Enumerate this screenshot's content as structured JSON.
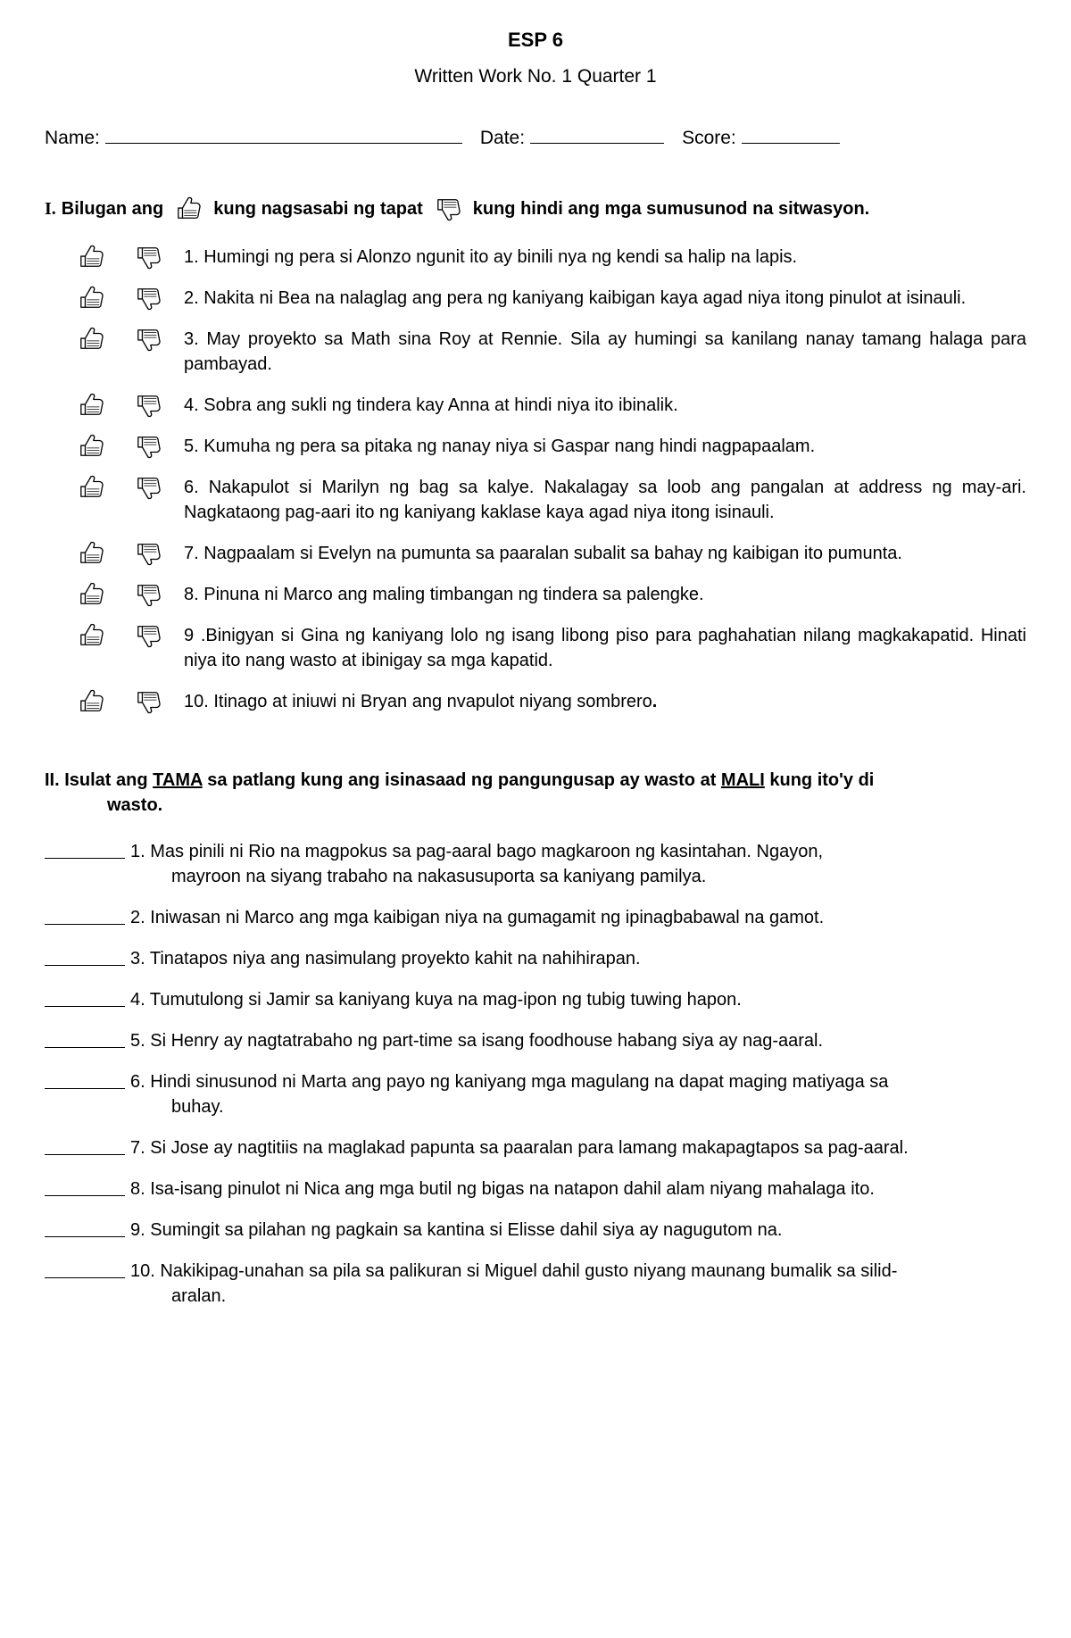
{
  "header": {
    "title": "ESP 6",
    "subtitle": "Written Work No. 1 Quarter 1"
  },
  "info": {
    "name_label": "Name:",
    "date_label": "Date:",
    "score_label": "Score:"
  },
  "section1": {
    "prefix_roman": "I.",
    "prefix_text": "Bilugan ang",
    "mid_text": "kung nagsasabi ng tapat",
    "end_text": "kung hindi ang mga sumusunod na sitwasyon.",
    "items": [
      "1. Humingi ng pera si Alonzo ngunit ito ay binili nya ng kendi sa halip na lapis.",
      "2. Nakita ni Bea na nalaglag ang pera ng kaniyang kaibigan kaya agad niya itong pinulot at isinauli.",
      "3. May proyekto sa Math sina Roy at Rennie. Sila ay humingi sa kanilang nanay tamang halaga para pambayad.",
      "4. Sobra ang sukli ng tindera kay Anna at hindi niya ito ibinalik.",
      "5. Kumuha ng pera sa pitaka ng nanay niya si Gaspar nang hindi nagpapaalam.",
      "6. Nakapulot si Marilyn ng bag sa kalye. Nakalagay sa loob ang pangalan at address ng may-ari. Nagkataong pag-aari ito ng kaniyang kaklase kaya agad niya itong isinauli.",
      "7. Nagpaalam si Evelyn na pumunta sa paaralan subalit sa bahay ng kaibigan ito pumunta.",
      "8. Pinuna ni Marco ang maling timbangan ng  tindera sa palengke.",
      "9 .Binigyan si Gina ng kaniyang lolo ng isang libong piso para paghahatian nilang magkakapatid. Hinati niya ito nang wasto at ibinigay sa mga kapatid.",
      "10. Itinago at iniuwi ni Bryan ang nvapulot niyang sombrero"
    ]
  },
  "section2": {
    "header_line1": "II. Isulat ang ",
    "header_tama": "TAMA",
    "header_mid": " sa patlang kung ang isinasaad ng pangungusap ay wasto at ",
    "header_mali": "MALI",
    "header_end": " kung ito'y di",
    "header_line2": "wasto.",
    "items": [
      {
        "num": "1.",
        "text": "Mas pinili ni Rio na magpokus sa pag-aaral bago magkaroon ng kasintahan. Ngayon,",
        "cont": "mayroon na siyang trabaho na nakasusuporta sa kaniyang pamilya."
      },
      {
        "num": "2.",
        "text": " Iniwasan ni Marco ang mga kaibigan niya na gumagamit ng ipinagbabawal     na gamot.",
        "cont": ""
      },
      {
        "num": "3.",
        "text": " Tinatapos niya ang nasimulang proyekto kahit na nahihirapan.",
        "cont": ""
      },
      {
        "num": "4.",
        "text": " Tumutulong si Jamir sa kaniyang kuya na mag-ipon ng tubig tuwing hapon.",
        "cont": ""
      },
      {
        "num": "5.",
        "text": " Si Henry ay nagtatrabaho ng part-time sa isang foodhouse habang  siya ay nag-aaral.",
        "cont": ""
      },
      {
        "num": "6.",
        "text": "  Hindi sinusunod ni Marta ang payo ng kaniyang mga magulang na dapat maging matiyaga sa",
        "cont": "buhay."
      },
      {
        "num": "7.",
        "text": " Si Jose ay nagtitiis na maglakad papunta sa paaralan para lamang makapagtapos sa pag-aaral.",
        "cont": ""
      },
      {
        "num": "8.",
        "text": " Isa-isang pinulot ni Nica ang mga butil ng bigas na natapon dahil alam  niyang mahalaga ito.",
        "cont": ""
      },
      {
        "num": "9.",
        "text": " Sumingit sa pilahan ng pagkain sa kantina si Elisse dahil siya ay nagugutom na.",
        "cont": ""
      },
      {
        "num": "10.",
        "text": "Nakikipag-unahan sa pila sa palikuran si Miguel dahil gusto niyang maunang bumalik sa silid-",
        "cont": "aralan."
      }
    ]
  }
}
